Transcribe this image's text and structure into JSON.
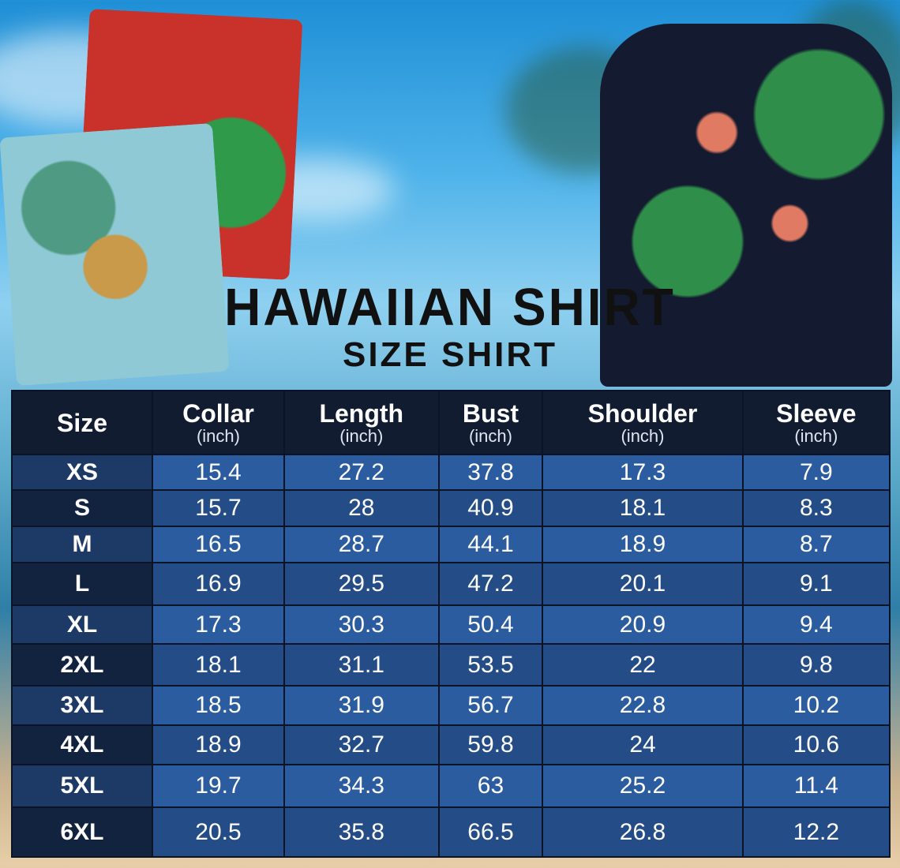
{
  "title": "HAWAIIAN SHIRT",
  "subtitle": "SIZE SHIRT",
  "colors": {
    "header_bg": "#111c30",
    "row_light": "#2b5c9f",
    "row_dark": "#244d88",
    "size_col": "#122340"
  },
  "table": {
    "headers": [
      {
        "label": "Size",
        "unit": ""
      },
      {
        "label": "Collar",
        "unit": "(inch)"
      },
      {
        "label": "Length",
        "unit": "(inch)"
      },
      {
        "label": "Bust",
        "unit": "(inch)"
      },
      {
        "label": "Shoulder",
        "unit": "(inch)"
      },
      {
        "label": "Sleeve",
        "unit": "(inch)"
      }
    ],
    "rows": [
      [
        "XS",
        "15.4",
        "27.2",
        "37.8",
        "17.3",
        "7.9"
      ],
      [
        "S",
        "15.7",
        "28",
        "40.9",
        "18.1",
        "8.3"
      ],
      [
        "M",
        "16.5",
        "28.7",
        "44.1",
        "18.9",
        "8.7"
      ],
      [
        "L",
        "16.9",
        "29.5",
        "47.2",
        "20.1",
        "9.1"
      ],
      [
        "XL",
        "17.3",
        "30.3",
        "50.4",
        "20.9",
        "9.4"
      ],
      [
        "2XL",
        "18.1",
        "31.1",
        "53.5",
        "22",
        "9.8"
      ],
      [
        "3XL",
        "18.5",
        "31.9",
        "56.7",
        "22.8",
        "10.2"
      ],
      [
        "4XL",
        "18.9",
        "32.7",
        "59.8",
        "24",
        "10.6"
      ],
      [
        "5XL",
        "19.7",
        "34.3",
        "63",
        "25.2",
        "11.4"
      ],
      [
        "6XL",
        "20.5",
        "35.8",
        "66.5",
        "26.8",
        "12.2"
      ]
    ]
  }
}
